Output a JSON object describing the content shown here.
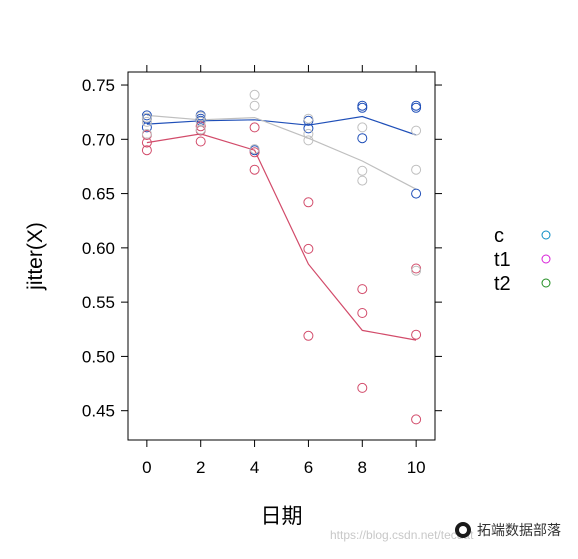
{
  "chart_data": {
    "type": "scatter",
    "xlabel": "日期",
    "ylabel": "jitter(X)",
    "xlim": [
      -0.7,
      10.7
    ],
    "ylim": [
      0.423,
      0.762
    ],
    "xticks": [
      0,
      2,
      4,
      6,
      8,
      10
    ],
    "yticks": [
      0.45,
      0.5,
      0.55,
      0.6,
      0.65,
      0.7,
      0.75
    ],
    "ytick_labels": [
      "0.45",
      "0.50",
      "0.55",
      "0.60",
      "0.65",
      "0.70",
      "0.75"
    ],
    "legend_position": "right",
    "series": [
      {
        "name": "c",
        "color": "#1f4fb8",
        "legend_color": "#0a8cc4",
        "points": [
          [
            0,
            0.722
          ],
          [
            0,
            0.719
          ],
          [
            0,
            0.711
          ],
          [
            2,
            0.722
          ],
          [
            2,
            0.719
          ],
          [
            2,
            0.717
          ],
          [
            4,
            0.69
          ],
          [
            6,
            0.717
          ],
          [
            6,
            0.71
          ],
          [
            8,
            0.731
          ],
          [
            8,
            0.729
          ],
          [
            8,
            0.701
          ],
          [
            10,
            0.731
          ],
          [
            10,
            0.729
          ],
          [
            10,
            0.65
          ]
        ],
        "smooth": [
          [
            0,
            0.714
          ],
          [
            2,
            0.717
          ],
          [
            4,
            0.718
          ],
          [
            6,
            0.713
          ],
          [
            8,
            0.721
          ],
          [
            10,
            0.704
          ]
        ]
      },
      {
        "name": "t1",
        "color": "#d24b6a",
        "legend_color": "#d81fd8",
        "points": [
          [
            0,
            0.704
          ],
          [
            0,
            0.697
          ],
          [
            0,
            0.69
          ],
          [
            2,
            0.712
          ],
          [
            2,
            0.708
          ],
          [
            2,
            0.698
          ],
          [
            4,
            0.711
          ],
          [
            4,
            0.688
          ],
          [
            4,
            0.672
          ],
          [
            6,
            0.642
          ],
          [
            6,
            0.599
          ],
          [
            6,
            0.519
          ],
          [
            8,
            0.562
          ],
          [
            8,
            0.54
          ],
          [
            8,
            0.471
          ],
          [
            10,
            0.581
          ],
          [
            10,
            0.52
          ],
          [
            10,
            0.442
          ]
        ],
        "smooth": [
          [
            0,
            0.697
          ],
          [
            2,
            0.705
          ],
          [
            4,
            0.69
          ],
          [
            6,
            0.585
          ],
          [
            8,
            0.524
          ],
          [
            10,
            0.515
          ]
        ]
      },
      {
        "name": "t2",
        "color": "#bfbfbf",
        "legend_color": "#1e8c1e",
        "points": [
          [
            0,
            0.72
          ],
          [
            0,
            0.716
          ],
          [
            0,
            0.705
          ],
          [
            2,
            0.721
          ],
          [
            2,
            0.716
          ],
          [
            2,
            0.709
          ],
          [
            4,
            0.741
          ],
          [
            4,
            0.731
          ],
          [
            4,
            0.691
          ],
          [
            6,
            0.719
          ],
          [
            6,
            0.705
          ],
          [
            6,
            0.699
          ],
          [
            8,
            0.711
          ],
          [
            8,
            0.671
          ],
          [
            8,
            0.662
          ],
          [
            10,
            0.708
          ],
          [
            10,
            0.672
          ],
          [
            10,
            0.579
          ]
        ],
        "smooth": [
          [
            0,
            0.722
          ],
          [
            2,
            0.718
          ],
          [
            4,
            0.72
          ],
          [
            6,
            0.701
          ],
          [
            8,
            0.68
          ],
          [
            10,
            0.654
          ]
        ]
      }
    ]
  },
  "watermark": "https://blog.csdn.net/tecdat",
  "brand": "拓端数据部落"
}
